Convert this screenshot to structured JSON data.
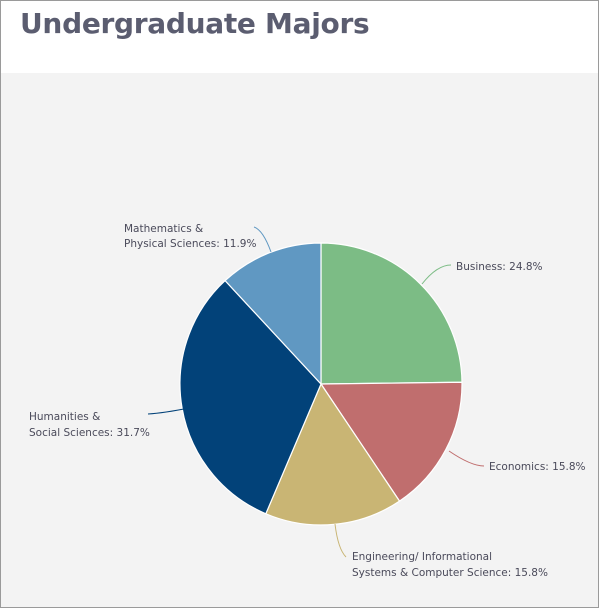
{
  "header": {
    "title": "Undergraduate Majors"
  },
  "chart_data": {
    "type": "pie",
    "title": "Undergraduate Majors",
    "slices": [
      {
        "label_lines": [
          "Business: 24.8%"
        ],
        "value": 24.8,
        "color": "#7cbc85"
      },
      {
        "label_lines": [
          "Economics: 15.8%"
        ],
        "value": 15.8,
        "color": "#c06e6e"
      },
      {
        "label_lines": [
          "Engineering/ Informational",
          "Systems & Computer Science: 15.8%"
        ],
        "value": 15.8,
        "color": "#c9b574"
      },
      {
        "label_lines": [
          "Humanities &",
          "Social Sciences: 31.7%"
        ],
        "value": 31.7,
        "color": "#024279"
      },
      {
        "label_lines": [
          "Mathematics &",
          "Physical Sciences: 11.9%"
        ],
        "value": 11.9,
        "color": "#6098c2"
      }
    ]
  }
}
